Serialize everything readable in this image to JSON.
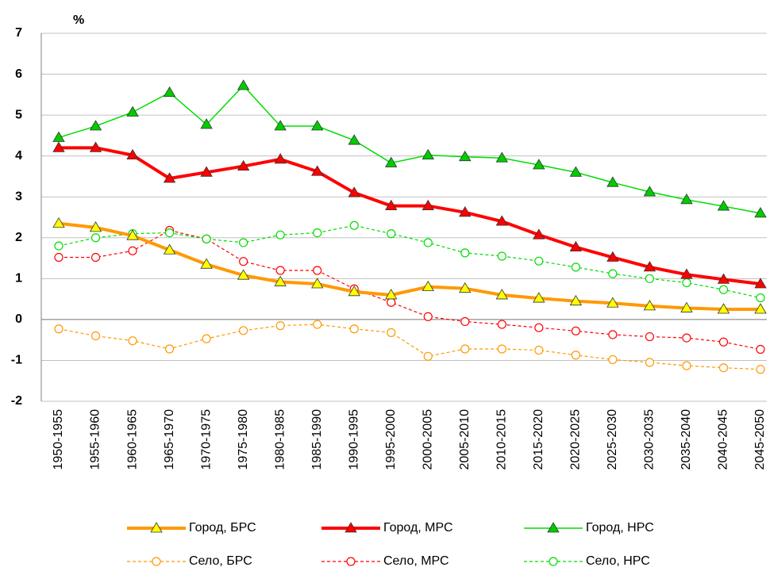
{
  "chart_data": {
    "type": "line",
    "y_label": "%",
    "categories": [
      "1950-1955",
      "1955-1960",
      "1960-1965",
      "1965-1970",
      "1970-1975",
      "1975-1980",
      "1980-1985",
      "1985-1990",
      "1990-1995",
      "1995-2000",
      "2000-2005",
      "2005-2010",
      "2010-2015",
      "2015-2020",
      "2020-2025",
      "2025-2030",
      "2030-2035",
      "2035-2040",
      "2040-2045",
      "2045-2050"
    ],
    "ylim": [
      -2,
      7
    ],
    "yticks": [
      -2,
      -1,
      0,
      1,
      2,
      3,
      4,
      5,
      6,
      7
    ],
    "grid": true,
    "series": [
      {
        "name": "Город, БРС",
        "color": "#ff9900",
        "marker": "triangle",
        "marker_fill": "#ffff00",
        "dashed": false,
        "line_width": 4,
        "values": [
          2.35,
          2.25,
          2.05,
          1.7,
          1.35,
          1.08,
          0.92,
          0.87,
          0.68,
          0.6,
          0.8,
          0.76,
          0.6,
          0.52,
          0.45,
          0.4,
          0.33,
          0.28,
          0.25,
          0.25
        ]
      },
      {
        "name": "Город, МРС",
        "color": "#ff0000",
        "marker": "triangle",
        "marker_fill": "#ff0000",
        "dashed": false,
        "line_width": 4,
        "values": [
          4.2,
          4.2,
          4.02,
          3.45,
          3.6,
          3.75,
          3.92,
          3.62,
          3.1,
          2.78,
          2.78,
          2.62,
          2.4,
          2.07,
          1.77,
          1.52,
          1.28,
          1.1,
          0.98,
          0.87
        ]
      },
      {
        "name": "Город, НРС",
        "color": "#00dd00",
        "marker": "triangle",
        "marker_fill": "#00cc00",
        "dashed": false,
        "line_width": 1.5,
        "values": [
          4.45,
          4.73,
          5.07,
          5.55,
          4.77,
          5.72,
          4.73,
          4.73,
          4.38,
          3.83,
          4.02,
          3.98,
          3.95,
          3.78,
          3.6,
          3.35,
          3.12,
          2.93,
          2.77,
          2.6
        ]
      },
      {
        "name": "Село, БРС",
        "color": "#ff9900",
        "marker": "circle",
        "marker_fill": "#ffffff",
        "dashed": true,
        "line_width": 1.2,
        "values": [
          -0.23,
          -0.4,
          -0.52,
          -0.72,
          -0.47,
          -0.27,
          -0.15,
          -0.12,
          -0.23,
          -0.32,
          -0.9,
          -0.72,
          -0.72,
          -0.75,
          -0.87,
          -0.98,
          -1.05,
          -1.13,
          -1.18,
          -1.22
        ]
      },
      {
        "name": "Село, МРС",
        "color": "#ff0000",
        "marker": "circle",
        "marker_fill": "#ffffff",
        "dashed": true,
        "line_width": 1.2,
        "values": [
          1.52,
          1.52,
          1.68,
          2.18,
          1.97,
          1.42,
          1.2,
          1.2,
          0.75,
          0.42,
          0.07,
          -0.05,
          -0.12,
          -0.2,
          -0.28,
          -0.37,
          -0.42,
          -0.45,
          -0.55,
          -0.73
        ]
      },
      {
        "name": "Село, НРС",
        "color": "#00dd00",
        "marker": "circle",
        "marker_fill": "#ffffff",
        "dashed": true,
        "line_width": 1.2,
        "values": [
          1.8,
          2.0,
          2.1,
          2.12,
          1.97,
          1.88,
          2.07,
          2.12,
          2.3,
          2.1,
          1.88,
          1.63,
          1.55,
          1.43,
          1.28,
          1.12,
          1.0,
          0.9,
          0.73,
          0.53
        ]
      }
    ]
  }
}
